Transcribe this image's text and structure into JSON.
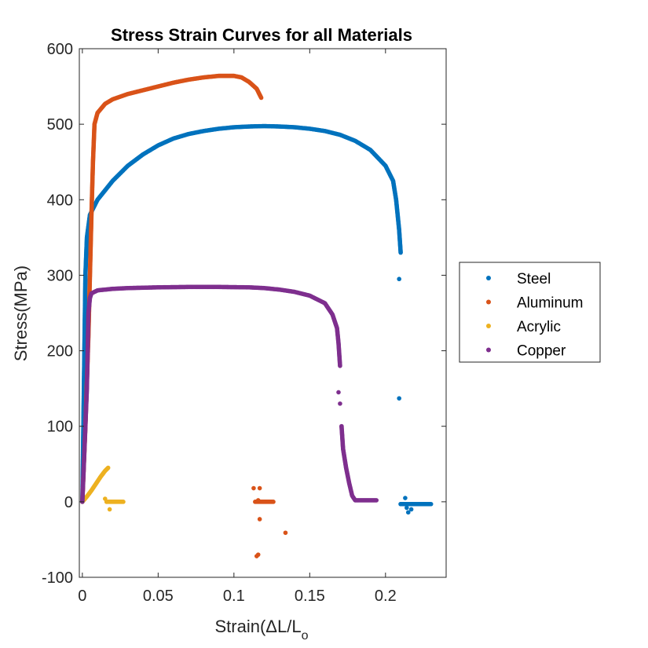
{
  "chart_data": {
    "type": "scatter",
    "title": "Stress Strain Curves for all Materials",
    "xlabel_main": "Strain(ΔL/L",
    "xlabel_sub": "o",
    "ylabel": "Stress(MPa)",
    "xlim": [
      -0.002,
      0.24
    ],
    "ylim": [
      -100,
      600
    ],
    "xticks": [
      0,
      0.05,
      0.1,
      0.15,
      0.2
    ],
    "xtick_labels": [
      "0",
      "0.05",
      "0.1",
      "0.15",
      "0.2"
    ],
    "yticks": [
      -100,
      0,
      100,
      200,
      300,
      400,
      500,
      600
    ],
    "ytick_labels": [
      "-100",
      "0",
      "100",
      "200",
      "300",
      "400",
      "500",
      "600"
    ],
    "grid": false,
    "legend_position": "right",
    "series": [
      {
        "name": "Steel",
        "color": "#0072BD",
        "curve": [
          [
            0,
            0
          ],
          [
            0.001,
            150
          ],
          [
            0.002,
            300
          ],
          [
            0.003,
            350
          ],
          [
            0.005,
            380
          ],
          [
            0.01,
            400
          ],
          [
            0.02,
            425
          ],
          [
            0.03,
            445
          ],
          [
            0.04,
            460
          ],
          [
            0.05,
            472
          ],
          [
            0.06,
            481
          ],
          [
            0.07,
            487
          ],
          [
            0.08,
            491
          ],
          [
            0.09,
            494
          ],
          [
            0.1,
            496
          ],
          [
            0.11,
            497
          ],
          [
            0.12,
            497.5
          ],
          [
            0.13,
            497
          ],
          [
            0.14,
            496
          ],
          [
            0.15,
            494
          ],
          [
            0.16,
            491
          ],
          [
            0.17,
            486
          ],
          [
            0.18,
            478
          ],
          [
            0.19,
            466
          ],
          [
            0.2,
            445
          ],
          [
            0.205,
            425
          ],
          [
            0.207,
            400
          ],
          [
            0.209,
            360
          ],
          [
            0.21,
            330
          ]
        ],
        "scatter": [
          [
            0.209,
            295
          ],
          [
            0.209,
            137
          ],
          [
            0.21,
            -3
          ],
          [
            0.212,
            -3
          ],
          [
            0.213,
            5
          ],
          [
            0.214,
            -8
          ],
          [
            0.215,
            -14
          ],
          [
            0.217,
            -10
          ],
          [
            0.2175,
            -3
          ]
        ],
        "tail": [
          [
            0.21,
            -3
          ],
          [
            0.23,
            -3
          ]
        ]
      },
      {
        "name": "Aluminum",
        "color": "#D95319",
        "curve": [
          [
            0,
            0
          ],
          [
            0.002,
            100
          ],
          [
            0.004,
            220
          ],
          [
            0.005,
            300
          ],
          [
            0.006,
            380
          ],
          [
            0.007,
            450
          ],
          [
            0.008,
            500
          ],
          [
            0.01,
            515
          ],
          [
            0.015,
            527
          ],
          [
            0.02,
            533
          ],
          [
            0.03,
            540
          ],
          [
            0.04,
            545
          ],
          [
            0.05,
            550
          ],
          [
            0.06,
            555
          ],
          [
            0.07,
            559
          ],
          [
            0.08,
            562
          ],
          [
            0.09,
            564
          ],
          [
            0.1,
            564
          ],
          [
            0.105,
            562
          ],
          [
            0.11,
            556
          ],
          [
            0.115,
            547
          ],
          [
            0.118,
            535
          ]
        ],
        "scatter": [
          [
            0.113,
            18
          ],
          [
            0.117,
            18
          ],
          [
            0.116,
            2
          ],
          [
            0.117,
            -23
          ],
          [
            0.116,
            -70
          ],
          [
            0.115,
            -72
          ],
          [
            0.134,
            -41
          ]
        ],
        "tail": [
          [
            0.114,
            0
          ],
          [
            0.126,
            0
          ]
        ]
      },
      {
        "name": "Acrylic",
        "color": "#EDB120",
        "curve": [
          [
            0,
            0
          ],
          [
            0.003,
            7
          ],
          [
            0.006,
            15
          ],
          [
            0.009,
            24
          ],
          [
            0.012,
            33
          ],
          [
            0.015,
            41
          ],
          [
            0.017,
            45
          ]
        ],
        "scatter": [
          [
            0.015,
            4
          ],
          [
            0.018,
            -10
          ],
          [
            0.016,
            0
          ]
        ],
        "tail": [
          [
            0.016,
            0
          ],
          [
            0.027,
            0
          ]
        ]
      },
      {
        "name": "Copper",
        "color": "#7E2F8E",
        "curve": [
          [
            0,
            0
          ],
          [
            0.003,
            150
          ],
          [
            0.004,
            250
          ],
          [
            0.005,
            270
          ],
          [
            0.006,
            276
          ],
          [
            0.01,
            280
          ],
          [
            0.02,
            282
          ],
          [
            0.03,
            283
          ],
          [
            0.05,
            284
          ],
          [
            0.07,
            284.5
          ],
          [
            0.09,
            284.5
          ],
          [
            0.11,
            284
          ],
          [
            0.12,
            283
          ],
          [
            0.13,
            281
          ],
          [
            0.14,
            278
          ],
          [
            0.15,
            273
          ],
          [
            0.16,
            263
          ],
          [
            0.165,
            248
          ],
          [
            0.168,
            230
          ],
          [
            0.169,
            210
          ],
          [
            0.17,
            180
          ]
        ],
        "scatter": [
          [
            0.169,
            145
          ],
          [
            0.17,
            130
          ],
          [
            0.171,
            100
          ]
        ],
        "curve2": [
          [
            0.171,
            100
          ],
          [
            0.172,
            70
          ],
          [
            0.174,
            45
          ],
          [
            0.176,
            25
          ],
          [
            0.178,
            8
          ],
          [
            0.18,
            2
          ],
          [
            0.194,
            2
          ]
        ]
      }
    ]
  }
}
